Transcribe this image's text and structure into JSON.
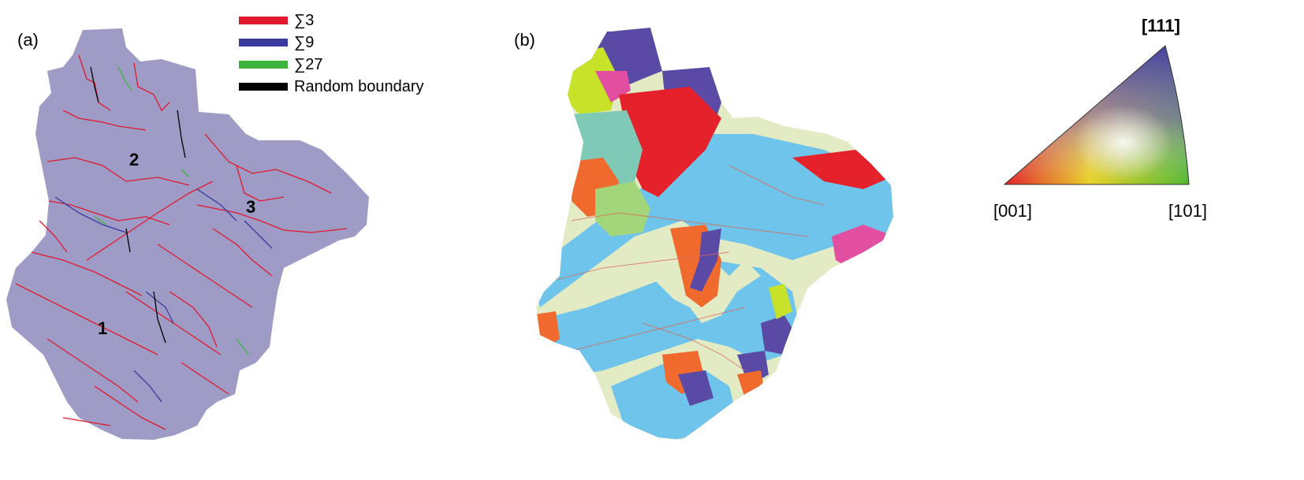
{
  "panels": {
    "a_label": "(a)",
    "b_label": "(b)"
  },
  "legend": [
    {
      "label": "∑3",
      "color": "#e0182c"
    },
    {
      "label": "∑9",
      "color": "#3a3a9e"
    },
    {
      "label": "∑27",
      "color": "#3cb43c"
    },
    {
      "label": "Random boundary",
      "color": "#000000"
    }
  ],
  "grain_numbers": [
    "1",
    "2",
    "3"
  ],
  "ipf_triangle": {
    "top": "[111]",
    "left": "[001]",
    "right": "[101]"
  },
  "colors": {
    "grain_fill_a": "#9e9cc7",
    "ipf_red": "#e01020",
    "ipf_green": "#3cb42a",
    "ipf_blue": "#3a3a9e",
    "map_palegreen": "#e3ebc5",
    "map_skyblue": "#6ec4ea",
    "map_orange": "#ef6a2c",
    "map_magenta": "#e24ea0",
    "map_yellowgreen": "#c8e22a",
    "map_teal": "#7ecab7",
    "map_purple": "#5a4aa6",
    "map_red": "#e5222c"
  }
}
